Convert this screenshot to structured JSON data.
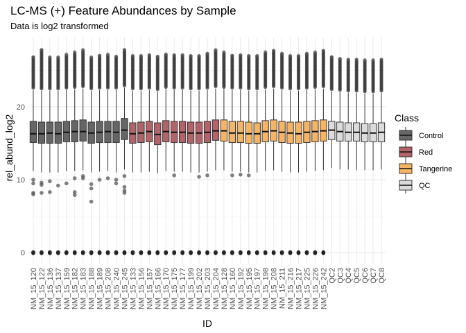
{
  "chart_data": {
    "type": "boxplot",
    "title": "LC-MS (+) Feature Abundances by Sample",
    "subtitle": "Data is log2 transformed",
    "xlabel": "ID",
    "ylabel": "rel_abund_log2",
    "ylim": [
      -1.5,
      29.5
    ],
    "yticks": [
      0,
      10,
      20
    ],
    "grid": true,
    "legend": {
      "title": "Class",
      "placement": "right",
      "entries": [
        {
          "name": "Control",
          "color": "#666666"
        },
        {
          "name": "Red",
          "color": "#b5636b"
        },
        {
          "name": "Tangerine",
          "color": "#f5b565"
        },
        {
          "name": "QC",
          "color": "#dcdcdc"
        }
      ]
    },
    "series": [
      {
        "id": "NM_15_120",
        "class": "Control",
        "whisker_low": 11.2,
        "q1": 15.1,
        "median": 16.3,
        "q3": 18.0,
        "whisker_high": 22.3,
        "outliers_high_to": 26.8,
        "zero_outliers": true,
        "low_outliers": [
          10.0,
          9.5,
          8.2,
          8.0
        ]
      },
      {
        "id": "NM_15_122",
        "class": "Control",
        "whisker_low": 11.0,
        "q1": 15.0,
        "median": 16.3,
        "q3": 17.9,
        "whisker_high": 22.2,
        "outliers_high_to": 27.8,
        "zero_outliers": true,
        "low_outliers": [
          9.6,
          9.3,
          8.2
        ]
      },
      {
        "id": "NM_15_136",
        "class": "Control",
        "whisker_low": 11.0,
        "q1": 15.0,
        "median": 16.4,
        "q3": 17.9,
        "whisker_high": 22.2,
        "outliers_high_to": 26.8,
        "zero_outliers": true,
        "low_outliers": [
          9.8,
          8.3
        ]
      },
      {
        "id": "NM_15_137",
        "class": "Control",
        "whisker_low": 11.0,
        "q1": 15.0,
        "median": 16.3,
        "q3": 17.9,
        "whisker_high": 22.2,
        "outliers_high_to": 26.8,
        "zero_outliers": true,
        "low_outliers": [
          9.2
        ]
      },
      {
        "id": "NM_15_159",
        "class": "Control",
        "whisker_low": 11.2,
        "q1": 15.2,
        "median": 16.5,
        "q3": 18.0,
        "whisker_high": 22.3,
        "outliers_high_to": 27.2,
        "zero_outliers": true,
        "low_outliers": [
          9.5
        ]
      },
      {
        "id": "NM_15_182",
        "class": "Control",
        "whisker_low": 11.2,
        "q1": 15.2,
        "median": 16.6,
        "q3": 18.1,
        "whisker_high": 22.4,
        "outliers_high_to": 27.5,
        "zero_outliers": true,
        "low_outliers": [
          10.2,
          8.3,
          7.9
        ]
      },
      {
        "id": "NM_15_183",
        "class": "Control",
        "whisker_low": 11.3,
        "q1": 15.3,
        "median": 16.6,
        "q3": 18.2,
        "whisker_high": 22.5,
        "outliers_high_to": 27.8,
        "zero_outliers": true,
        "low_outliers": [
          10.5,
          10.2
        ]
      },
      {
        "id": "NM_15_188",
        "class": "Control",
        "whisker_low": 11.0,
        "q1": 15.0,
        "median": 16.4,
        "q3": 17.9,
        "whisker_high": 22.2,
        "outliers_high_to": 26.8,
        "zero_outliers": true,
        "low_outliers": [
          9.4,
          8.8,
          7.0
        ]
      },
      {
        "id": "NM_15_189",
        "class": "Control",
        "whisker_low": 11.1,
        "q1": 15.1,
        "median": 16.5,
        "q3": 18.0,
        "whisker_high": 22.3,
        "outliers_high_to": 27.0,
        "zero_outliers": true,
        "low_outliers": [
          10.0
        ]
      },
      {
        "id": "NM_15_208",
        "class": "Control",
        "whisker_low": 11.2,
        "q1": 15.1,
        "median": 16.6,
        "q3": 18.0,
        "whisker_high": 22.3,
        "outliers_high_to": 27.2,
        "zero_outliers": true,
        "low_outliers": [
          10.2
        ]
      },
      {
        "id": "NM_15_240",
        "class": "Control",
        "whisker_low": 11.0,
        "q1": 15.1,
        "median": 16.5,
        "q3": 18.0,
        "whisker_high": 22.3,
        "outliers_high_to": 26.9,
        "zero_outliers": true,
        "low_outliers": [
          10.0,
          9.5
        ]
      },
      {
        "id": "NM_15_245",
        "class": "Control",
        "whisker_low": 11.4,
        "q1": 15.5,
        "median": 16.8,
        "q3": 18.4,
        "whisker_high": 22.6,
        "outliers_high_to": 27.8,
        "zero_outliers": true,
        "low_outliers": [
          10.5,
          9.0,
          8.5,
          8.2
        ]
      },
      {
        "id": "NM_15_133",
        "class": "Red",
        "whisker_low": 11.0,
        "q1": 15.0,
        "median": 16.3,
        "q3": 17.8,
        "whisker_high": 22.2,
        "outliers_high_to": 27.0,
        "zero_outliers": true,
        "low_outliers": []
      },
      {
        "id": "NM_15_156",
        "class": "Red",
        "whisker_low": 11.0,
        "q1": 15.1,
        "median": 16.4,
        "q3": 17.9,
        "whisker_high": 22.2,
        "outliers_high_to": 27.0,
        "zero_outliers": true,
        "low_outliers": []
      },
      {
        "id": "NM_15_157",
        "class": "Red",
        "whisker_low": 11.1,
        "q1": 15.2,
        "median": 16.6,
        "q3": 18.0,
        "whisker_high": 22.3,
        "outliers_high_to": 27.1,
        "zero_outliers": true,
        "low_outliers": []
      },
      {
        "id": "NM_15_166",
        "class": "Red",
        "whisker_low": 10.9,
        "q1": 14.8,
        "median": 16.2,
        "q3": 17.8,
        "whisker_high": 22.1,
        "outliers_high_to": 26.9,
        "zero_outliers": true,
        "low_outliers": []
      },
      {
        "id": "NM_15_170",
        "class": "Red",
        "whisker_low": 11.2,
        "q1": 15.2,
        "median": 16.6,
        "q3": 18.1,
        "whisker_high": 22.4,
        "outliers_high_to": 27.2,
        "zero_outliers": true,
        "low_outliers": []
      },
      {
        "id": "NM_15_175",
        "class": "Red",
        "whisker_low": 11.1,
        "q1": 15.1,
        "median": 16.5,
        "q3": 18.0,
        "whisker_high": 22.3,
        "outliers_high_to": 27.1,
        "zero_outliers": true,
        "low_outliers": [
          10.6
        ]
      },
      {
        "id": "NM_15_177",
        "class": "Red",
        "whisker_low": 11.1,
        "q1": 15.1,
        "median": 16.5,
        "q3": 18.0,
        "whisker_high": 22.3,
        "outliers_high_to": 27.1,
        "zero_outliers": true,
        "low_outliers": []
      },
      {
        "id": "NM_15_199",
        "class": "Red",
        "whisker_low": 11.0,
        "q1": 15.0,
        "median": 16.4,
        "q3": 17.9,
        "whisker_high": 22.2,
        "outliers_high_to": 27.0,
        "zero_outliers": true,
        "low_outliers": []
      },
      {
        "id": "NM_15_202",
        "class": "Red",
        "whisker_low": 11.0,
        "q1": 15.0,
        "median": 16.4,
        "q3": 17.9,
        "whisker_high": 22.2,
        "outliers_high_to": 27.0,
        "zero_outliers": true,
        "low_outliers": [
          10.4
        ]
      },
      {
        "id": "NM_15_203",
        "class": "Red",
        "whisker_low": 11.1,
        "q1": 15.1,
        "median": 16.5,
        "q3": 18.0,
        "whisker_high": 22.3,
        "outliers_high_to": 27.3,
        "zero_outliers": true,
        "low_outliers": [
          10.6
        ]
      },
      {
        "id": "NM_15_204",
        "class": "Red",
        "whisker_low": 11.3,
        "q1": 15.4,
        "median": 16.7,
        "q3": 18.2,
        "whisker_high": 22.5,
        "outliers_high_to": 27.8,
        "zero_outliers": true,
        "low_outliers": []
      },
      {
        "id": "NM_15_128",
        "class": "Tangerine",
        "whisker_low": 11.3,
        "q1": 15.3,
        "median": 16.7,
        "q3": 18.2,
        "whisker_high": 22.4,
        "outliers_high_to": 27.5,
        "zero_outliers": true,
        "low_outliers": []
      },
      {
        "id": "NM_15_160",
        "class": "Tangerine",
        "whisker_low": 11.1,
        "q1": 15.1,
        "median": 16.4,
        "q3": 18.0,
        "whisker_high": 22.3,
        "outliers_high_to": 27.0,
        "zero_outliers": true,
        "low_outliers": [
          10.6
        ]
      },
      {
        "id": "NM_15_192",
        "class": "Tangerine",
        "whisker_low": 11.1,
        "q1": 15.1,
        "median": 16.4,
        "q3": 18.0,
        "whisker_high": 22.3,
        "outliers_high_to": 27.1,
        "zero_outliers": true,
        "low_outliers": [
          10.7
        ]
      },
      {
        "id": "NM_15_195",
        "class": "Tangerine",
        "whisker_low": 11.0,
        "q1": 15.0,
        "median": 16.3,
        "q3": 17.9,
        "whisker_high": 22.2,
        "outliers_high_to": 27.0,
        "zero_outliers": true,
        "low_outliers": [
          10.6
        ]
      },
      {
        "id": "NM_15_197",
        "class": "Tangerine",
        "whisker_low": 11.0,
        "q1": 15.0,
        "median": 16.3,
        "q3": 17.8,
        "whisker_high": 22.2,
        "outliers_high_to": 27.0,
        "zero_outliers": true,
        "low_outliers": []
      },
      {
        "id": "NM_15_198",
        "class": "Tangerine",
        "whisker_low": 11.2,
        "q1": 15.2,
        "median": 16.6,
        "q3": 18.1,
        "whisker_high": 22.4,
        "outliers_high_to": 27.5,
        "zero_outliers": true,
        "low_outliers": []
      },
      {
        "id": "NM_15_208",
        "class": "Tangerine",
        "whisker_low": 11.3,
        "q1": 15.3,
        "median": 16.7,
        "q3": 18.2,
        "whisker_high": 22.5,
        "outliers_high_to": 27.7,
        "zero_outliers": true,
        "low_outliers": []
      },
      {
        "id": "NM_15_211",
        "class": "Tangerine",
        "whisker_low": 11.1,
        "q1": 15.1,
        "median": 16.5,
        "q3": 18.0,
        "whisker_high": 22.3,
        "outliers_high_to": 27.3,
        "zero_outliers": true,
        "low_outliers": []
      },
      {
        "id": "NM_15_216",
        "class": "Tangerine",
        "whisker_low": 11.0,
        "q1": 15.0,
        "median": 16.4,
        "q3": 17.9,
        "whisker_high": 22.2,
        "outliers_high_to": 27.0,
        "zero_outliers": true,
        "low_outliers": []
      },
      {
        "id": "NM_15_217",
        "class": "Tangerine",
        "whisker_low": 11.0,
        "q1": 15.0,
        "median": 16.3,
        "q3": 17.9,
        "whisker_high": 22.2,
        "outliers_high_to": 27.0,
        "zero_outliers": true,
        "low_outliers": []
      },
      {
        "id": "NM_15_225",
        "class": "Tangerine",
        "whisker_low": 11.1,
        "q1": 15.1,
        "median": 16.5,
        "q3": 18.0,
        "whisker_high": 22.3,
        "outliers_high_to": 27.3,
        "zero_outliers": true,
        "low_outliers": []
      },
      {
        "id": "NM_15_226",
        "class": "Tangerine",
        "whisker_low": 11.2,
        "q1": 15.2,
        "median": 16.6,
        "q3": 18.1,
        "whisker_high": 22.4,
        "outliers_high_to": 27.5,
        "zero_outliers": true,
        "low_outliers": []
      },
      {
        "id": "NM_15_242",
        "class": "Tangerine",
        "whisker_low": 11.3,
        "q1": 15.3,
        "median": 16.7,
        "q3": 18.2,
        "whisker_high": 22.5,
        "outliers_high_to": 27.7,
        "zero_outliers": true,
        "low_outliers": []
      },
      {
        "id": "QC2",
        "class": "QC",
        "whisker_low": 11.6,
        "q1": 15.5,
        "median": 16.8,
        "q3": 18.0,
        "whisker_high": 22.1,
        "outliers_high_to": 26.8,
        "zero_outliers": false,
        "low_outliers": []
      },
      {
        "id": "QC3",
        "class": "QC",
        "whisker_low": 11.4,
        "q1": 15.3,
        "median": 16.6,
        "q3": 17.9,
        "whisker_high": 22.0,
        "outliers_high_to": 26.6,
        "zero_outliers": false,
        "low_outliers": []
      },
      {
        "id": "QC4",
        "class": "QC",
        "whisker_low": 11.4,
        "q1": 15.3,
        "median": 16.5,
        "q3": 17.8,
        "whisker_high": 21.9,
        "outliers_high_to": 26.5,
        "zero_outliers": false,
        "low_outliers": []
      },
      {
        "id": "QC5",
        "class": "QC",
        "whisker_low": 11.3,
        "q1": 15.3,
        "median": 16.5,
        "q3": 17.8,
        "whisker_high": 21.9,
        "outliers_high_to": 26.5,
        "zero_outliers": false,
        "low_outliers": []
      },
      {
        "id": "QC6",
        "class": "QC",
        "whisker_low": 11.3,
        "q1": 15.2,
        "median": 16.4,
        "q3": 17.7,
        "whisker_high": 21.8,
        "outliers_high_to": 26.4,
        "zero_outliers": false,
        "low_outliers": []
      },
      {
        "id": "QC7",
        "class": "QC",
        "whisker_low": 11.3,
        "q1": 15.2,
        "median": 16.4,
        "q3": 17.7,
        "whisker_high": 21.8,
        "outliers_high_to": 26.4,
        "zero_outliers": false,
        "low_outliers": []
      },
      {
        "id": "QC8",
        "class": "QC",
        "whisker_low": 11.4,
        "q1": 15.2,
        "median": 16.5,
        "q3": 17.8,
        "whisker_high": 21.9,
        "outliers_high_to": 26.5,
        "zero_outliers": false,
        "low_outliers": []
      }
    ]
  }
}
